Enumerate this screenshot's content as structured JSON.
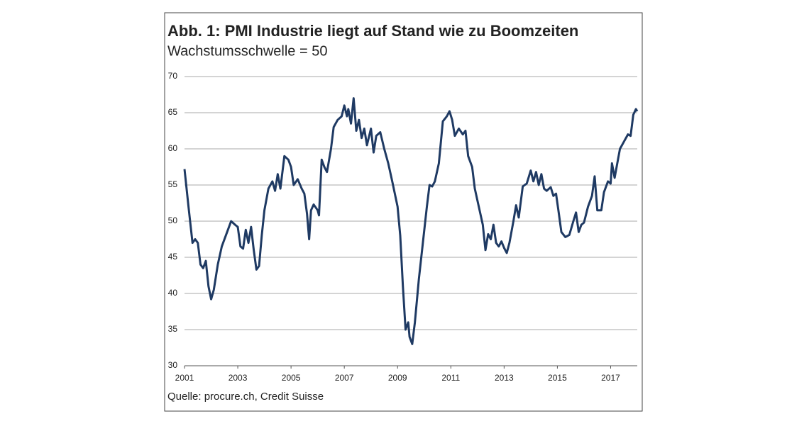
{
  "chart_data": {
    "type": "line",
    "title": "Abb. 1: PMI Industrie liegt auf Stand wie zu Boomzeiten",
    "subtitle": "Wachstumsschwelle = 50",
    "source": "Quelle: procure.ch, Credit Suisse",
    "color": "#1f3a63",
    "grid": true,
    "xlim": [
      2001,
      2018
    ],
    "xticks": [
      2001,
      2003,
      2005,
      2007,
      2009,
      2011,
      2013,
      2015,
      2017
    ],
    "ylim": [
      30,
      70
    ],
    "yticks": [
      30,
      35,
      40,
      45,
      50,
      55,
      60,
      65,
      70
    ],
    "x": [
      2001.0,
      2001.15,
      2001.3,
      2001.4,
      2001.5,
      2001.6,
      2001.7,
      2001.8,
      2001.9,
      2002.0,
      2002.1,
      2002.25,
      2002.4,
      2002.6,
      2002.75,
      2002.9,
      2003.0,
      2003.1,
      2003.2,
      2003.3,
      2003.4,
      2003.5,
      2003.6,
      2003.7,
      2003.8,
      2003.9,
      2004.0,
      2004.15,
      2004.3,
      2004.4,
      2004.5,
      2004.6,
      2004.75,
      2004.9,
      2005.0,
      2005.1,
      2005.25,
      2005.4,
      2005.5,
      2005.6,
      2005.68,
      2005.75,
      2005.85,
      2006.0,
      2006.05,
      2006.15,
      2006.25,
      2006.35,
      2006.5,
      2006.6,
      2006.75,
      2006.9,
      2007.0,
      2007.1,
      2007.15,
      2007.25,
      2007.35,
      2007.45,
      2007.55,
      2007.65,
      2007.75,
      2007.85,
      2008.0,
      2008.1,
      2008.2,
      2008.35,
      2008.5,
      2008.65,
      2008.8,
      2009.0,
      2009.1,
      2009.2,
      2009.3,
      2009.4,
      2009.45,
      2009.55,
      2009.65,
      2009.8,
      2009.95,
      2010.1,
      2010.2,
      2010.3,
      2010.4,
      2010.55,
      2010.7,
      2010.85,
      2010.95,
      2011.05,
      2011.15,
      2011.3,
      2011.45,
      2011.55,
      2011.65,
      2011.8,
      2011.9,
      2012.05,
      2012.2,
      2012.3,
      2012.4,
      2012.5,
      2012.6,
      2012.7,
      2012.8,
      2012.9,
      2013.0,
      2013.1,
      2013.2,
      2013.35,
      2013.45,
      2013.55,
      2013.7,
      2013.85,
      2014.0,
      2014.1,
      2014.2,
      2014.3,
      2014.4,
      2014.5,
      2014.6,
      2014.75,
      2014.85,
      2014.95,
      2015.05,
      2015.15,
      2015.3,
      2015.45,
      2015.6,
      2015.7,
      2015.8,
      2015.9,
      2016.0,
      2016.15,
      2016.3,
      2016.4,
      2016.5,
      2016.65,
      2016.75,
      2016.9,
      2017.0,
      2017.05,
      2017.15,
      2017.25,
      2017.35,
      2017.5,
      2017.65,
      2017.75,
      2017.85,
      2017.95,
      2018.0
    ],
    "values": [
      57.2,
      52,
      47,
      47.5,
      47,
      44,
      43.5,
      44.5,
      41,
      39.2,
      40.5,
      44,
      46.5,
      48.5,
      50,
      49.5,
      49.2,
      46.5,
      46.2,
      48.8,
      47,
      49.2,
      46,
      43.3,
      43.8,
      48,
      51.5,
      54.5,
      55.5,
      54.2,
      56.5,
      54.5,
      59,
      58.5,
      57.5,
      55,
      55.8,
      54.5,
      53.8,
      51,
      47.5,
      51.5,
      52.3,
      51.5,
      50.8,
      58.5,
      57.5,
      56.8,
      60,
      63,
      64,
      64.5,
      66,
      64.5,
      65.5,
      63.5,
      67,
      62.5,
      64,
      61.5,
      62.8,
      60.5,
      62.8,
      59.5,
      61.8,
      62.3,
      60,
      58,
      55.5,
      52,
      48,
      41,
      35,
      36,
      34,
      33,
      36,
      42,
      47,
      52,
      55,
      54.8,
      55.5,
      58,
      63.8,
      64.5,
      65.2,
      64,
      61.8,
      62.8,
      62,
      62.5,
      59,
      57.5,
      54.5,
      52,
      49.5,
      46,
      48.2,
      47.5,
      49.5,
      47,
      46.5,
      47.2,
      46.3,
      45.6,
      47,
      50,
      52.2,
      50.5,
      54.8,
      55.2,
      57,
      55.5,
      56.8,
      55,
      56.5,
      54.5,
      54.2,
      54.7,
      53.5,
      53.8,
      51.2,
      48.5,
      47.8,
      48.1,
      50,
      51.2,
      48.5,
      49.5,
      49.8,
      52,
      53.5,
      56.2,
      51.5,
      51.5,
      54,
      55.5,
      55.2,
      58,
      56,
      58,
      60,
      61,
      62,
      61.8,
      64.7,
      65.5,
      65.2
    ]
  }
}
